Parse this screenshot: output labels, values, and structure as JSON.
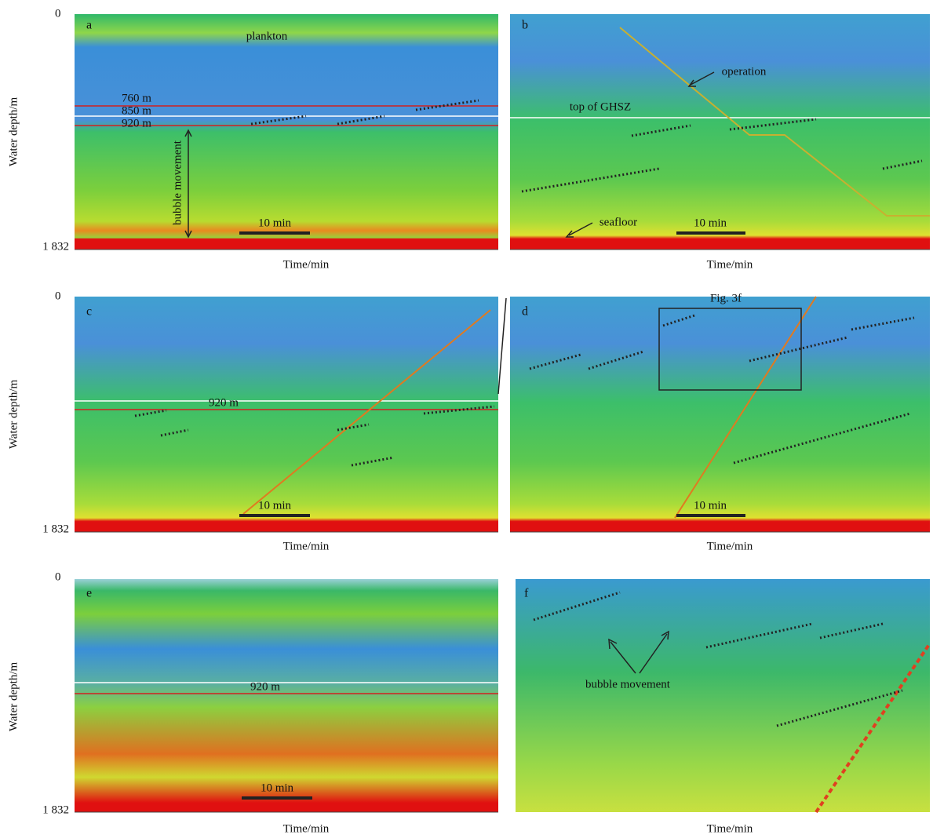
{
  "panels": [
    {
      "label": "a",
      "y_axis_label": "Water depth/m",
      "y_ticks": [
        "0",
        "1 832"
      ],
      "x_axis_label": "Time/min",
      "scale_bar": "10 min",
      "annotations": [
        "plankton",
        "760 m",
        "850 m",
        "920 m",
        "bubble movement"
      ]
    },
    {
      "label": "b",
      "x_axis_label": "Time/min",
      "scale_bar": "10 min",
      "annotations": [
        "operation",
        "top of GHSZ",
        "seafloor"
      ]
    },
    {
      "label": "c",
      "y_axis_label": "Water depth/m",
      "y_ticks": [
        "0",
        "1 832"
      ],
      "x_axis_label": "Time/min",
      "scale_bar": "10 min",
      "annotations": [
        "920 m"
      ]
    },
    {
      "label": "d",
      "x_axis_label": "Time/min",
      "scale_bar": "10 min",
      "annotations": [
        "Fig. 3f"
      ]
    },
    {
      "label": "e",
      "y_axis_label": "Water depth/m",
      "y_ticks": [
        "0",
        "1 832"
      ],
      "x_axis_label": "Time/min",
      "scale_bar": "10 min",
      "annotations": [
        "920 m"
      ]
    },
    {
      "label": "f",
      "x_axis_label": "Time/min",
      "annotations": [
        "bubble movement"
      ]
    }
  ]
}
